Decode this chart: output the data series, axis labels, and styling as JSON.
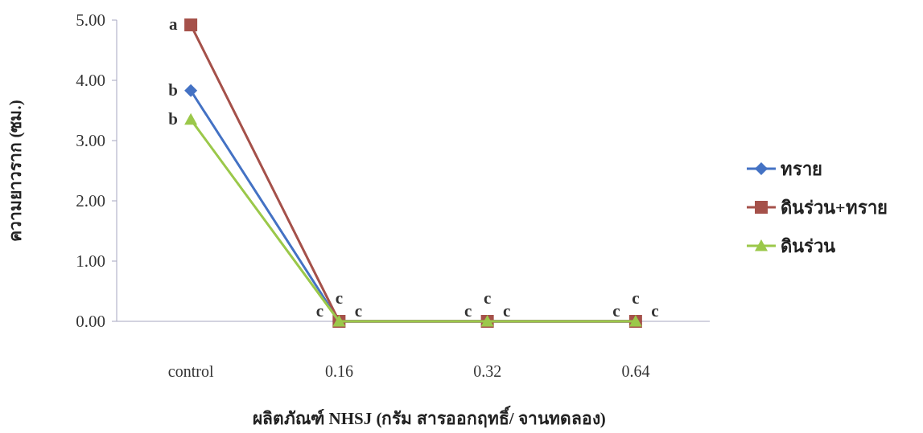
{
  "chart_data": {
    "type": "line",
    "xlabel": "ผลิตภัณฑ์ NHSJ (กรัม สารออกฤทธิ์/ จานทดลอง)",
    "ylabel": "ความยาวราก (ซม.)",
    "categories": [
      "control",
      "0.16",
      "0.32",
      "0.64"
    ],
    "ylim": [
      0,
      5
    ],
    "yticks": [
      {
        "value": 0,
        "label": "0.00"
      },
      {
        "value": 1,
        "label": "1.00"
      },
      {
        "value": 2,
        "label": "2.00"
      },
      {
        "value": 3,
        "label": "3.00"
      },
      {
        "value": 4,
        "label": "4.00"
      },
      {
        "value": 5,
        "label": "5.00"
      }
    ],
    "series": [
      {
        "name": "ทราย",
        "color": "#4472c4",
        "marker": "diamond",
        "values": [
          3.83,
          0,
          0,
          0
        ]
      },
      {
        "name": "ดินร่วน+ทราย",
        "color": "#a5514a",
        "marker": "square",
        "values": [
          4.92,
          0,
          0,
          0
        ]
      },
      {
        "name": "ดินร่วน",
        "color": "#9bc84a",
        "marker": "triangle",
        "values": [
          3.35,
          0,
          0,
          0
        ]
      }
    ],
    "annotations": [
      {
        "text": "a",
        "x": "control",
        "y": 4.92
      },
      {
        "text": "b",
        "x": "control",
        "y": 3.83
      },
      {
        "text": "b",
        "x": "control",
        "y": 3.35
      },
      {
        "text": "c",
        "x": "0.16",
        "y": 0
      },
      {
        "text": "c",
        "x": "0.16",
        "y": 0
      },
      {
        "text": "c",
        "x": "0.16",
        "y": 0
      },
      {
        "text": "c",
        "x": "0.32",
        "y": 0
      },
      {
        "text": "c",
        "x": "0.32",
        "y": 0
      },
      {
        "text": "c",
        "x": "0.32",
        "y": 0
      },
      {
        "text": "c",
        "x": "0.64",
        "y": 0
      },
      {
        "text": "c",
        "x": "0.64",
        "y": 0
      },
      {
        "text": "c",
        "x": "0.64",
        "y": 0
      }
    ],
    "legend": "right",
    "grid": false,
    "line_style": "solid"
  }
}
